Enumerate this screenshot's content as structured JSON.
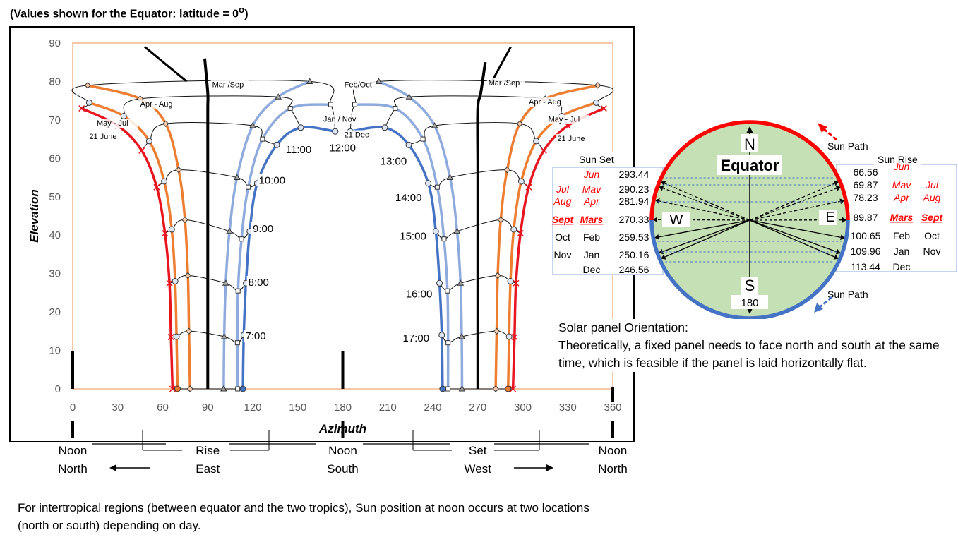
{
  "page": {
    "heading_pre": "(Values shown for the Equator: latitude = 0",
    "heading_deg": "o",
    "heading_post": ")"
  },
  "chart_data": {
    "type": "line",
    "xlabel": "Azimuth",
    "ylabel": "Elevation",
    "xlim": [
      0,
      360
    ],
    "ylim": [
      0,
      90
    ],
    "xticks": [
      0,
      30,
      60,
      90,
      120,
      150,
      180,
      210,
      240,
      270,
      300,
      330,
      360
    ],
    "yticks": [
      0,
      10,
      20,
      30,
      40,
      50,
      60,
      70,
      80,
      90
    ],
    "grid": false,
    "noon_line": {
      "east": [
        [
          90,
          0
        ],
        [
          90,
          15
        ],
        [
          90,
          30
        ],
        [
          90,
          47
        ],
        [
          90,
          61.5
        ],
        [
          90,
          73
        ],
        [
          90,
          77
        ],
        [
          88,
          86
        ]
      ],
      "west": [
        [
          270,
          0
        ],
        [
          270,
          15
        ],
        [
          270,
          30
        ],
        [
          270,
          44
        ],
        [
          270,
          58
        ],
        [
          270,
          73
        ],
        [
          272,
          77
        ],
        [
          275,
          85
        ]
      ],
      "tails": [
        [
          [
            48,
            89
          ],
          [
            76,
            80
          ]
        ],
        [
          [
            292,
            89
          ],
          [
            278,
            79
          ]
        ]
      ]
    },
    "series": [
      {
        "name": "21 June",
        "color": "#e8151f",
        "width": 3.5,
        "am": [
          [
            66.56,
            0
          ],
          [
            65.5,
            13.5
          ],
          [
            64.5,
            27.5
          ],
          [
            61.5,
            40.5
          ],
          [
            56,
            52.5
          ],
          [
            46,
            62
          ],
          [
            30,
            68.5
          ],
          [
            6,
            73
          ]
        ],
        "pm": [
          [
            293.44,
            0
          ],
          [
            294.5,
            13.5
          ],
          [
            295.5,
            27.5
          ],
          [
            298.5,
            40.5
          ],
          [
            304,
            52.5
          ],
          [
            314,
            62
          ],
          [
            330,
            68.5
          ],
          [
            354,
            73
          ]
        ]
      },
      {
        "name": "May - Jul",
        "color": "#ed7d31",
        "width": 3.5,
        "am": [
          [
            69.87,
            0
          ],
          [
            69.2,
            13.6
          ],
          [
            68.3,
            28
          ],
          [
            66,
            41.5
          ],
          [
            61,
            54
          ],
          [
            51,
            64.5
          ],
          [
            34,
            71
          ],
          [
            11,
            74.5
          ]
        ],
        "pm": [
          [
            290.23,
            0
          ],
          [
            290.9,
            13.6
          ],
          [
            291.8,
            28
          ],
          [
            294,
            41.5
          ],
          [
            299,
            54
          ],
          [
            309,
            64.5
          ],
          [
            326,
            71
          ],
          [
            349,
            74.5
          ]
        ]
      },
      {
        "name": "Apr - Aug",
        "color": "#ed7d31",
        "width": 3.5,
        "am": [
          [
            78.23,
            0
          ],
          [
            77.5,
            15
          ],
          [
            76.8,
            29.5
          ],
          [
            74.8,
            44
          ],
          [
            70.6,
            57
          ],
          [
            62,
            69
          ],
          [
            45,
            75.5
          ],
          [
            10,
            79
          ]
        ],
        "pm": [
          [
            281.94,
            0
          ],
          [
            282.6,
            15
          ],
          [
            283.3,
            29.5
          ],
          [
            285.3,
            44
          ],
          [
            289.6,
            57
          ],
          [
            298,
            69
          ],
          [
            315,
            75.5
          ],
          [
            350,
            79
          ]
        ]
      },
      {
        "name": "Oct - Feb",
        "color": "#8faadc",
        "width": 3.5,
        "am": [
          [
            100.65,
            0
          ],
          [
            101,
            13.6
          ],
          [
            102,
            27.5
          ],
          [
            104.5,
            41
          ],
          [
            109.5,
            55
          ],
          [
            120,
            68.5
          ],
          [
            137,
            76
          ],
          [
            158,
            80
          ]
        ],
        "pm": [
          [
            259.53,
            0
          ],
          [
            259.3,
            13.6
          ],
          [
            258.5,
            27.5
          ],
          [
            256.2,
            41
          ],
          [
            251.5,
            55
          ],
          [
            241.2,
            68.5
          ],
          [
            224.2,
            76
          ],
          [
            204,
            80
          ]
        ]
      },
      {
        "name": "Nov - Jan",
        "color": "#8faadc",
        "width": 3.5,
        "am": [
          [
            109.96,
            0
          ],
          [
            109.8,
            12
          ],
          [
            110.2,
            25.5
          ],
          [
            112.5,
            39
          ],
          [
            117,
            52.5
          ],
          [
            126.5,
            65
          ],
          [
            145,
            73
          ],
          [
            172,
            74
          ]
        ],
        "pm": [
          [
            250.16,
            0
          ],
          [
            250.2,
            12
          ],
          [
            249.8,
            25.5
          ],
          [
            247.5,
            39
          ],
          [
            243,
            52.5
          ],
          [
            233.5,
            65
          ],
          [
            215,
            73
          ],
          [
            188,
            74
          ]
        ]
      },
      {
        "name": "21 Dec",
        "color": "#4472c4",
        "width": 3.5,
        "am": [
          [
            113.44,
            0
          ],
          [
            114,
            14
          ],
          [
            115.5,
            27.5
          ],
          [
            118,
            41
          ],
          [
            123,
            53.5
          ],
          [
            136,
            63.5
          ],
          [
            152,
            68
          ],
          [
            175,
            67
          ]
        ],
        "pm": [
          [
            246.56,
            0
          ],
          [
            246,
            14
          ],
          [
            244.5,
            27.5
          ],
          [
            242,
            41
          ],
          [
            237,
            53.5
          ],
          [
            224,
            63.5
          ],
          [
            208,
            68
          ],
          [
            185,
            67
          ]
        ]
      }
    ],
    "hour_labels": [
      {
        "text": "7:00",
        "x": 115,
        "y": 13
      },
      {
        "text": "8:00",
        "x": 117,
        "y": 27
      },
      {
        "text": "9:00",
        "x": 120,
        "y": 41
      },
      {
        "text": "10:00",
        "x": 124,
        "y": 53.5
      },
      {
        "text": "11:00",
        "x": 142,
        "y": 61.5
      },
      {
        "text": "12:00",
        "x": 171,
        "y": 62
      },
      {
        "text": "13:00",
        "x": 205,
        "y": 58.5
      },
      {
        "text": "14:00",
        "x": 215,
        "y": 49
      },
      {
        "text": "15:00",
        "x": 218,
        "y": 39
      },
      {
        "text": "16:00",
        "x": 222,
        "y": 24
      },
      {
        "text": "17:00",
        "x": 220,
        "y": 12.5
      }
    ],
    "month_labels": [
      {
        "text": "Mar /Sep",
        "x": 93,
        "y": 78.5
      },
      {
        "text": "Mar /Sep",
        "x": 277,
        "y": 79
      },
      {
        "text": "Apr - Aug",
        "x": 45,
        "y": 73.5
      },
      {
        "text": "Apr - Aug",
        "x": 304,
        "y": 74
      },
      {
        "text": "May - Jul",
        "x": 16,
        "y": 68.5
      },
      {
        "text": "May - Jul",
        "x": 317,
        "y": 69.5
      },
      {
        "text": "21 June",
        "x": 11,
        "y": 65
      },
      {
        "text": "21 June",
        "x": 323,
        "y": 64.5
      },
      {
        "text": "Feb/Oct",
        "x": 181,
        "y": 78.5
      },
      {
        "text": "Jan / Nov",
        "x": 167,
        "y": 69.5
      },
      {
        "text": "21 Dec",
        "x": 181,
        "y": 65.5
      }
    ],
    "axis_notes": [
      {
        "t1": "Noon",
        "t2": "North",
        "x": 0
      },
      {
        "t1": "Rise",
        "t2": "East",
        "x": 90
      },
      {
        "t1": "Noon",
        "t2": "South",
        "x": 180
      },
      {
        "t1": "Set",
        "t2": "West",
        "x": 270
      },
      {
        "t1": "Noon",
        "t2": "North",
        "x": 360
      }
    ]
  },
  "compass": {
    "n": "N",
    "s": "S",
    "w": "W",
    "e": "E",
    "title": "Equator",
    "s_value": "180",
    "sun_path_top": "Sun Path",
    "sun_path_bottom": "Sun Path",
    "sun_set": "Sun Set",
    "sun_rise": "Sun Rise",
    "set_azimuths": [
      293.44,
      290.23,
      281.94,
      270.33,
      259.53,
      250.16,
      246.56
    ],
    "rise_azimuths": [
      66.56,
      69.87,
      78.23,
      89.87,
      100.65,
      109.96,
      113.44
    ],
    "left_table": [
      {
        "c1": "",
        "c2": "Jun",
        "v": "293.44",
        "red": true
      },
      {
        "c1": "Jul",
        "c2": "Mav",
        "v": "290.23",
        "red": true
      },
      {
        "c1": "Aug",
        "c2": "Apr",
        "v": "281.94",
        "red": true
      },
      {
        "c1": "Sept",
        "c2": "Mars",
        "v": "270.33",
        "red": true,
        "bold": true
      },
      {
        "c1": "Oct",
        "c2": "Feb",
        "v": "259.53",
        "red": false
      },
      {
        "c1": "Nov",
        "c2": "Jan",
        "v": "250.16",
        "red": false
      },
      {
        "c1": "",
        "c2": "Dec",
        "v": "246.56",
        "red": false
      }
    ],
    "right_table": [
      {
        "v": "66.56",
        "c1": "Jun",
        "c2": "",
        "red": true
      },
      {
        "v": "69.87",
        "c1": "Mav",
        "c2": "Jul",
        "red": true
      },
      {
        "v": "78.23",
        "c1": "Apr",
        "c2": "Aug",
        "red": true
      },
      {
        "v": "89.87",
        "c1": "Mars",
        "c2": "Sept",
        "red": true,
        "bold": true
      },
      {
        "v": "100.65",
        "c1": "Feb",
        "c2": "Oct",
        "red": false
      },
      {
        "v": "109.96",
        "c1": "Jan",
        "c2": "Nov",
        "red": false
      },
      {
        "v": "113.44",
        "c1": "Dec",
        "c2": "",
        "red": false
      }
    ],
    "colors": {
      "north": "#ff0000",
      "south": "#4472c4",
      "fill": "#c5e0b4"
    }
  },
  "panel_note": {
    "line1": "Solar panel Orientation:",
    "line2": "Theoretically, a fixed panel needs to face north and south at the same time, which is feasible if the panel is laid horizontally flat."
  },
  "bottom_note": "For intertropical regions (between equator and the two tropics), Sun position at noon occurs at two locations (north or south) depending on day."
}
